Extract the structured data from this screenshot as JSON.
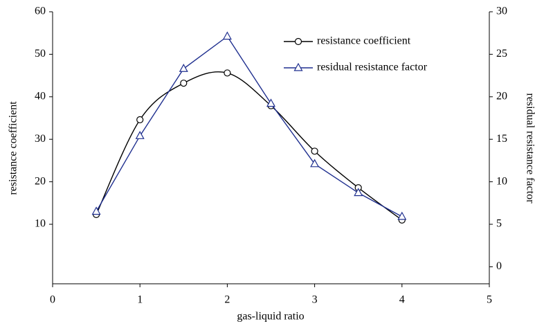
{
  "chart_data": {
    "type": "line",
    "xlabel": "gas-liquid ratio",
    "ylabel": "resistance coefficient",
    "y2label": "residual resistance factor",
    "x": [
      0.5,
      1,
      1.5,
      2,
      2.5,
      3,
      3.5,
      4
    ],
    "xlim": [
      0,
      5
    ],
    "xticks": [
      0,
      1,
      2,
      3,
      4,
      5
    ],
    "ylim": [
      -4,
      60
    ],
    "yticks": [
      10,
      20,
      30,
      40,
      50,
      60
    ],
    "y2lim": [
      -2,
      30
    ],
    "y2ticks": [
      0,
      5,
      10,
      15,
      20,
      25,
      30
    ],
    "legend": "upper right",
    "series": [
      {
        "name": "resistance coefficient",
        "color": "#000000",
        "marker": "circle",
        "smooth": true,
        "values": [
          12.3,
          34.6,
          43.2,
          45.6,
          37.9,
          27.2,
          18.6,
          11.0
        ]
      },
      {
        "name": "residual resistance factor",
        "color": "#1f2f8f",
        "marker": "triangle",
        "axis": "y2",
        "values": [
          6.5,
          15.4,
          23.3,
          27.1,
          19.2,
          12.1,
          8.7,
          5.9
        ]
      }
    ]
  }
}
